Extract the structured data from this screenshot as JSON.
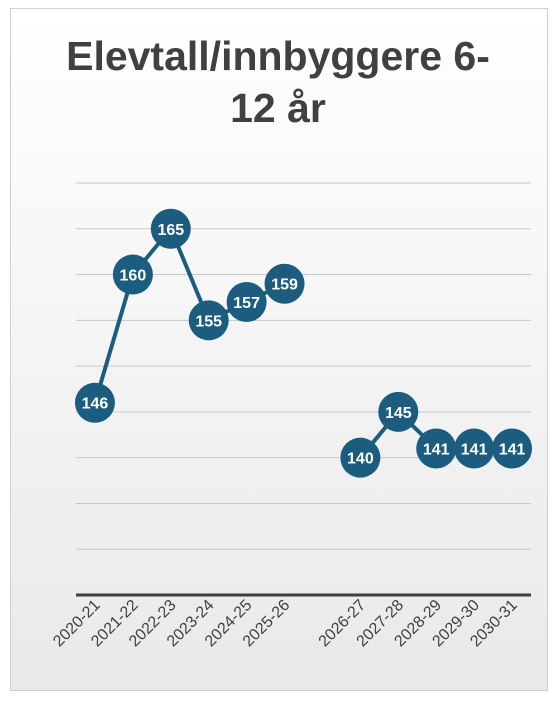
{
  "chart_data": {
    "type": "line",
    "title": "Elevtall/innbyggere 6-12 år",
    "categories": [
      "2020-21",
      "2021-22",
      "2022-23",
      "2023-24",
      "2024-25",
      "2025-26",
      null,
      "2026-27",
      "2027-28",
      "2028-29",
      "2029-30",
      "2030-31"
    ],
    "series": [
      {
        "name": "Elevtall/innbyggere 6-12 år",
        "color": "#1c5d7f",
        "values": [
          146,
          160,
          165,
          155,
          157,
          159,
          null,
          140,
          145,
          141,
          141,
          141
        ]
      }
    ],
    "ylim": [
      125,
      170
    ],
    "yticks": [
      125,
      130,
      135,
      140,
      145,
      150,
      155,
      160,
      165,
      170
    ],
    "grid": true
  }
}
